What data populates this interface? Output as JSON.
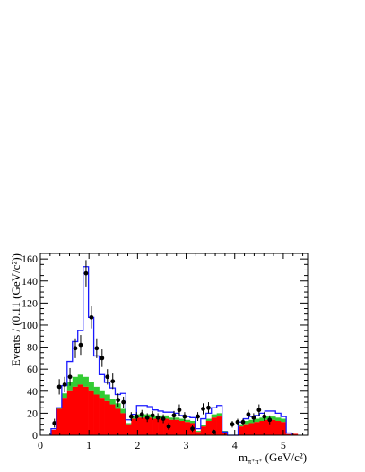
{
  "chart_data": {
    "type": "histogram",
    "ylabel": "Events / (0.11 (GeV/c²))",
    "xlabel": "m",
    "xlabel_sub": "π⁺π⁺",
    "xlabel_unit": "(GeV/c²)",
    "xlim": [
      0,
      5.5
    ],
    "ylim": [
      0,
      165
    ],
    "xticks": [
      0,
      1,
      2,
      3,
      4,
      5
    ],
    "yticks": [
      0,
      20,
      40,
      60,
      80,
      100,
      120,
      140,
      160
    ],
    "bin_width": 0.11,
    "bins_start": 0.22,
    "colors": {
      "red": "#ff0000",
      "green": "#33cc33",
      "blue": "#1a1aff",
      "points": "#000000"
    },
    "stack_red": [
      5,
      24,
      34,
      40,
      44,
      46,
      44,
      40,
      37,
      34,
      31,
      28,
      24,
      20,
      10,
      15,
      16,
      16,
      16,
      15,
      15,
      15,
      14,
      14,
      13,
      12,
      11,
      3,
      8,
      13,
      16,
      17,
      3,
      0,
      0,
      8,
      10,
      11,
      12,
      13,
      14,
      14,
      13,
      12,
      1
    ],
    "stack_green": [
      0,
      1,
      4,
      8,
      9,
      9,
      9,
      8,
      7,
      6,
      6,
      5,
      5,
      4,
      1,
      2,
      3,
      3,
      3,
      3,
      3,
      3,
      2,
      2,
      2,
      2,
      2,
      1,
      1,
      2,
      3,
      3,
      1,
      0,
      0,
      2,
      3,
      3,
      3,
      3,
      3,
      3,
      3,
      3,
      0
    ],
    "total": [
      6,
      25,
      45,
      67,
      85,
      95,
      153,
      107,
      72,
      55,
      48,
      43,
      37,
      38,
      14,
      19,
      27,
      27,
      26,
      23,
      22,
      21,
      21,
      20,
      18,
      17,
      16,
      6,
      15,
      20,
      25,
      27,
      3,
      0,
      0,
      12,
      15,
      17,
      18,
      20,
      22,
      22,
      20,
      17,
      2
    ],
    "points": [
      {
        "x": 0.29,
        "y": 11,
        "e": 4
      },
      {
        "x": 0.39,
        "y": 44,
        "e": 7
      },
      {
        "x": 0.5,
        "y": 46,
        "e": 7
      },
      {
        "x": 0.61,
        "y": 53,
        "e": 8
      },
      {
        "x": 0.72,
        "y": 79,
        "e": 9
      },
      {
        "x": 0.83,
        "y": 82,
        "e": 9
      },
      {
        "x": 0.94,
        "y": 147,
        "e": 12
      },
      {
        "x": 1.05,
        "y": 107,
        "e": 10
      },
      {
        "x": 1.16,
        "y": 79,
        "e": 9
      },
      {
        "x": 1.27,
        "y": 70,
        "e": 8
      },
      {
        "x": 1.38,
        "y": 53,
        "e": 7
      },
      {
        "x": 1.49,
        "y": 49,
        "e": 7
      },
      {
        "x": 1.6,
        "y": 32,
        "e": 6
      },
      {
        "x": 1.71,
        "y": 30,
        "e": 5
      },
      {
        "x": 1.87,
        "y": 17,
        "e": 4
      },
      {
        "x": 1.98,
        "y": 17,
        "e": 4
      },
      {
        "x": 2.09,
        "y": 19,
        "e": 4
      },
      {
        "x": 2.2,
        "y": 16,
        "e": 4
      },
      {
        "x": 2.31,
        "y": 18,
        "e": 4
      },
      {
        "x": 2.42,
        "y": 16,
        "e": 4
      },
      {
        "x": 2.53,
        "y": 15,
        "e": 4
      },
      {
        "x": 2.64,
        "y": 8,
        "e": 3
      },
      {
        "x": 2.75,
        "y": 18,
        "e": 4
      },
      {
        "x": 2.86,
        "y": 23,
        "e": 5
      },
      {
        "x": 2.97,
        "y": 17,
        "e": 4
      },
      {
        "x": 3.13,
        "y": 6,
        "e": 3
      },
      {
        "x": 3.24,
        "y": 17,
        "e": 4
      },
      {
        "x": 3.35,
        "y": 24,
        "e": 5
      },
      {
        "x": 3.46,
        "y": 25,
        "e": 5
      },
      {
        "x": 3.57,
        "y": 3,
        "e": 2
      },
      {
        "x": 3.95,
        "y": 10,
        "e": 3
      },
      {
        "x": 4.06,
        "y": 12,
        "e": 3
      },
      {
        "x": 4.17,
        "y": 12,
        "e": 3
      },
      {
        "x": 4.28,
        "y": 19,
        "e": 4
      },
      {
        "x": 4.39,
        "y": 16,
        "e": 4
      },
      {
        "x": 4.5,
        "y": 23,
        "e": 5
      },
      {
        "x": 4.61,
        "y": 17,
        "e": 4
      },
      {
        "x": 4.72,
        "y": 14,
        "e": 4
      }
    ]
  }
}
